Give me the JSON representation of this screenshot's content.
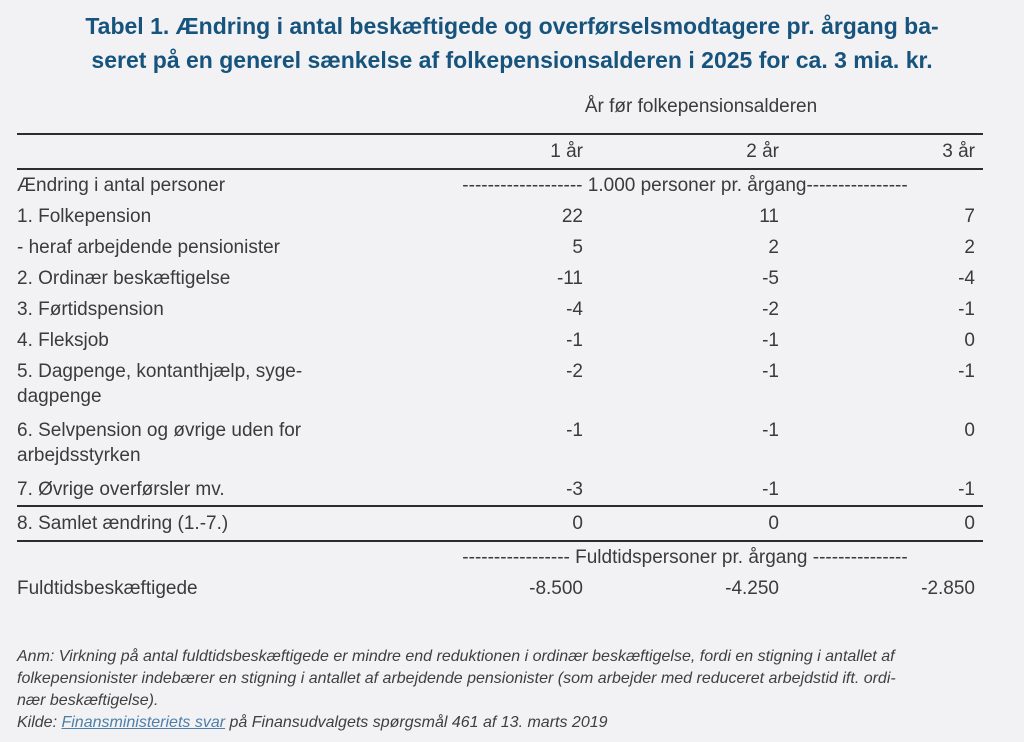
{
  "title": {
    "full": "Tabel 1. Ændring i antal beskæftigede og overførselsmodtagere pr. årgang baseret på en generel sænkelse af folkepensionsalderen i 2025 for ca. 3 mia. kr.",
    "line1": "Tabel 1. Ændring i antal beskæftigede og overførselsmodtagere pr. årgang ba-",
    "line2": "seret på en generel sænkelse af folkepensionsalderen i 2025 for ca. 3 mia. kr."
  },
  "table": {
    "group_header": "År før folkepensionsalderen",
    "columns": [
      "1 år",
      "2 år",
      "3 år"
    ],
    "unit_header": {
      "label": "Ændring i antal personer",
      "text": "------------------- 1.000 personer pr. årgang----------------"
    },
    "rows": [
      {
        "label": "1. Folkepension",
        "values": [
          "22",
          "11",
          "7"
        ]
      },
      {
        "label": "- heraf arbejdende pensionister",
        "values": [
          "5",
          "2",
          "2"
        ]
      },
      {
        "label": "2. Ordinær beskæftigelse",
        "values": [
          "-11",
          "-5",
          "-4"
        ]
      },
      {
        "label": "3. Førtidspension",
        "values": [
          "-4",
          "-2",
          "-1"
        ]
      },
      {
        "label": "4. Fleksjob",
        "values": [
          "-1",
          "-1",
          "0"
        ]
      },
      {
        "label": "5. Dagpenge, kontanthjælp, syge-dagpenge",
        "values": [
          "-2",
          "-1",
          "-1"
        ]
      },
      {
        "label": "6. Selvpension og øvrige uden for arbejdsstyrken",
        "values": [
          "-1",
          "-1",
          "0"
        ]
      },
      {
        "label": "7. Øvrige overførsler mv.",
        "values": [
          "-3",
          "-1",
          "-1"
        ]
      }
    ],
    "total_row": {
      "label": "8. Samlet ændring (1.-7.)",
      "values": [
        "0",
        "0",
        "0"
      ]
    },
    "unit_header2": {
      "text": "----------------- Fuldtidspersoner pr. årgang ---------------"
    },
    "fulltime_row": {
      "label": "Fuldtidsbeskæftigede",
      "values": [
        "-8.500",
        "-4.250",
        "-2.850"
      ]
    }
  },
  "footnote": {
    "anm_full": "Anm: Virkning på antal fuldtidsbeskæftigede er mindre end reduktionen i ordinær beskæftigelse, fordi en stigning i antallet af folkepensionister indebærer en stigning i antallet af arbejdende pensionister (som arbejder med reduceret arbejdstid ift. ordinær beskæftigelse).",
    "anm_lines": [
      "Anm: Virkning på antal fuldtidsbeskæftigede er mindre end reduktionen i ordinær beskæftigelse, fordi en stigning i antallet af",
      "folkepensionister indebærer en stigning i antallet af arbejdende pensionister (som arbejder med reduceret arbejdstid ift. ordi-",
      "nær beskæftigelse)."
    ],
    "kilde_prefix": "Kilde: ",
    "kilde_link": "Finansministeriets svar",
    "kilde_suffix": " på Finansudvalgets spørgsmål 461 af 13. marts 2019"
  },
  "colors": {
    "title_blue": "#16537D",
    "link_blue": "#4D7FA8",
    "text_dark": "#3B3B3B",
    "rule_dark": "#2D2D2D",
    "page_bg": "#F2F2F4"
  }
}
